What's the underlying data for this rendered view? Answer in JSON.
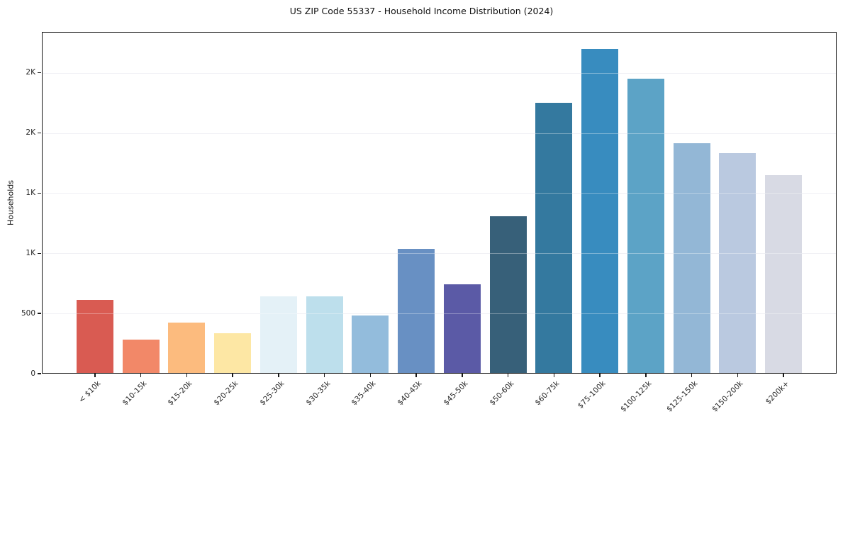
{
  "title": "US ZIP Code 55337 - Household Income Distribution (2024)",
  "chart_data": {
    "type": "bar",
    "title": "US ZIP Code 55337 - Household Income Distribution (2024)",
    "xlabel": "",
    "ylabel": "Households",
    "categories": [
      "< $10k",
      "$10-15k",
      "$15-20k",
      "$20-25k",
      "$25-30k",
      "$30-35k",
      "$35-40k",
      "$40-45k",
      "$45-50k",
      "$50-60k",
      "$60-75k",
      "$75-100k",
      "$100-125k",
      "$125-150k",
      "$150-200k",
      "$200k+"
    ],
    "values": [
      610,
      280,
      425,
      335,
      645,
      640,
      485,
      1035,
      745,
      1310,
      2250,
      2700,
      2450,
      1915,
      1830,
      1650
    ],
    "bar_colors": [
      "#d95b52",
      "#f28868",
      "#fcbb7e",
      "#fde7a4",
      "#e4f1f7",
      "#bddfec",
      "#93bcdc",
      "#6890c3",
      "#5b5aa6",
      "#376079",
      "#34799f",
      "#388cbf",
      "#5ca3c6",
      "#93b7d6",
      "#bac9e0",
      "#d8dae4"
    ],
    "ylim": [
      0,
      2840
    ],
    "yticks": [
      {
        "value": 0,
        "label": "0"
      },
      {
        "value": 500,
        "label": "500"
      },
      {
        "value": 1000,
        "label": "1K"
      },
      {
        "value": 1500,
        "label": "1K"
      },
      {
        "value": 2000,
        "label": "2K"
      },
      {
        "value": 2500,
        "label": "2K"
      }
    ],
    "grid": "horizontal",
    "legend": "none",
    "spines": "box"
  }
}
